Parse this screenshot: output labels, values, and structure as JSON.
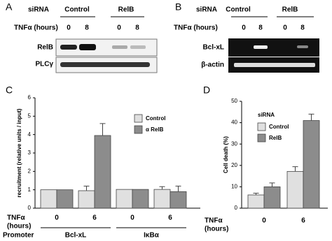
{
  "panel_labels": [
    "A",
    "B",
    "C",
    "D"
  ],
  "blot_a": {
    "sirna_label": "siRNA",
    "groups": [
      "Control",
      "RelB"
    ],
    "tnf_label": "TNFα (hours)",
    "times": [
      "0",
      "8",
      "0",
      "8"
    ],
    "rows": [
      "RelB",
      "PLCγ"
    ]
  },
  "blot_b": {
    "sirna_label": "siRNA",
    "groups": [
      "Control",
      "RelB"
    ],
    "tnf_label": "TNFα (hours)",
    "times": [
      "0",
      "8",
      "0",
      "8"
    ],
    "rows": [
      "Bcl-xL",
      "β-actin"
    ]
  },
  "chart_data": [
    {
      "type": "bar",
      "ylabel": "recruitment (relative units / input)",
      "x_label": "TNFα",
      "x_label_unit": "(hours)",
      "categories": [
        "0",
        "6",
        "0",
        "6"
      ],
      "group_label": "Promoter",
      "groups": [
        "Bcl-xL",
        "IκBα"
      ],
      "series": [
        {
          "name": "Control",
          "color": "#e0e0e0",
          "values": [
            1,
            0.95,
            1.02,
            1.02
          ],
          "errors": [
            null,
            0.25,
            null,
            0.15
          ]
        },
        {
          "name": "α RelB",
          "color": "#8c8c8c",
          "values": [
            1,
            3.95,
            1.02,
            0.9
          ],
          "errors": [
            null,
            0.65,
            null,
            0.3
          ]
        }
      ],
      "ylim": [
        0,
        6
      ],
      "yticks": [
        0,
        1,
        2,
        3,
        4,
        5,
        6
      ]
    },
    {
      "type": "bar",
      "ylabel": "Cell death (%)",
      "x_label": "TNFα",
      "x_label_unit": "(hours)",
      "categories": [
        "0",
        "6"
      ],
      "legend_title": "siRNA",
      "series": [
        {
          "name": "Control",
          "color": "#e0e0e0",
          "values": [
            6.2,
            17.2
          ],
          "errors": [
            0.8,
            2.2
          ]
        },
        {
          "name": "RelB",
          "color": "#8c8c8c",
          "values": [
            10,
            41
          ],
          "errors": [
            1.8,
            3
          ]
        }
      ],
      "ylim": [
        0,
        50
      ],
      "yticks": [
        0,
        10,
        20,
        30,
        40,
        50
      ]
    }
  ]
}
